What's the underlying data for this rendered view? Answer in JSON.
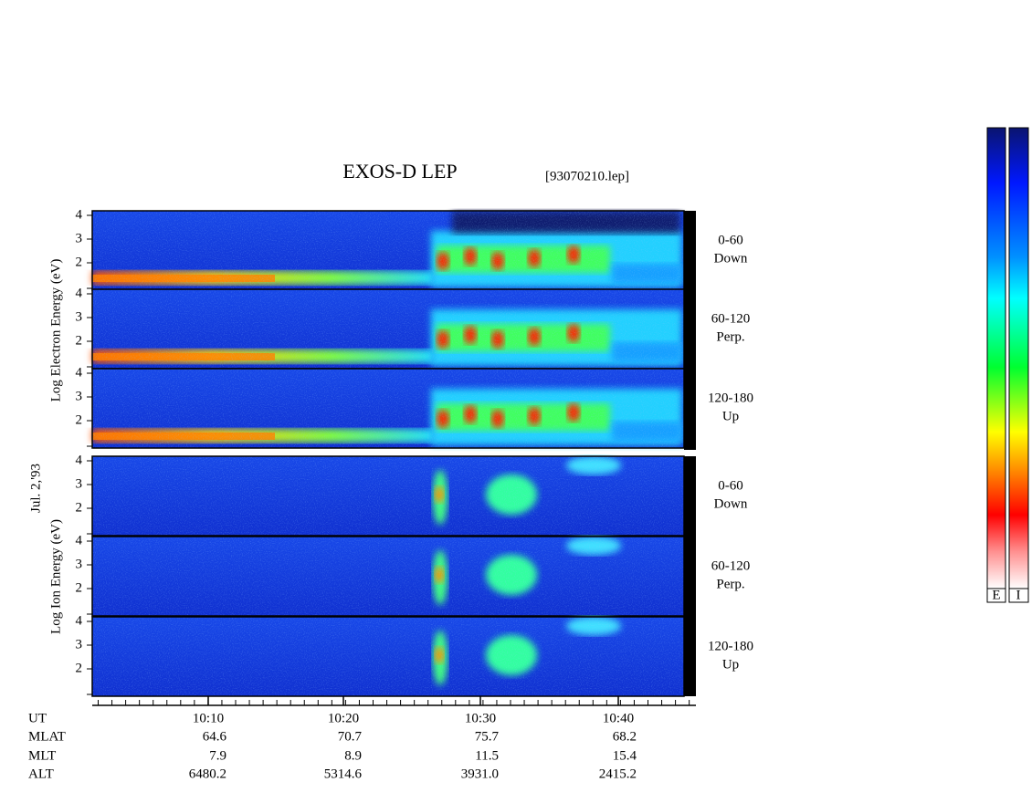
{
  "title": "EXOS-D LEP",
  "file": "[93070210.lep]",
  "date": "Jul. 2,'93",
  "electron": {
    "axis_label": "Log Electron Energy (eV)",
    "panels": [
      {
        "range": "0-60",
        "dir": "Down"
      },
      {
        "range": "60-120",
        "dir": "Perp."
      },
      {
        "range": "120-180",
        "dir": "Up"
      }
    ]
  },
  "ion": {
    "axis_label": "Log Ion Energy (eV)",
    "panels": [
      {
        "range": "0-60",
        "dir": "Down"
      },
      {
        "range": "60-120",
        "dir": "Perp."
      },
      {
        "range": "120-180",
        "dir": "Up"
      }
    ]
  },
  "yticks": [
    "4",
    "3",
    "2"
  ],
  "ephemeris": {
    "rows": [
      {
        "label": "UT",
        "values": [
          "10:10",
          "10:20",
          "10:30",
          "10:40"
        ]
      },
      {
        "label": "MLAT",
        "values": [
          "64.6",
          "70.7",
          "75.7",
          "68.2"
        ]
      },
      {
        "label": "MLT",
        "values": [
          "7.9",
          "8.9",
          "11.5",
          "15.4"
        ]
      },
      {
        "label": "ALT",
        "values": [
          "6480.2",
          "5314.6",
          "3931.0",
          "2415.2"
        ]
      }
    ]
  },
  "colorbar": {
    "labels": [
      "E",
      "I"
    ]
  }
}
